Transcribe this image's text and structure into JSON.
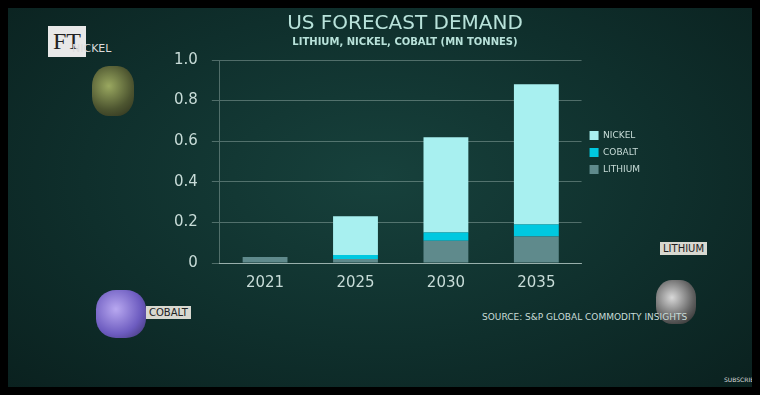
{
  "chart_data": {
    "type": "bar",
    "title": "US FORECAST DEMAND",
    "subtitle": "LITHIUM, NICKEL, COBALT (MN TONNES)",
    "categories": [
      "2021",
      "2025",
      "2030",
      "2035"
    ],
    "series": [
      {
        "name": "LITHIUM",
        "color": "#5f8a8c",
        "values": [
          0.03,
          0.02,
          0.11,
          0.13
        ]
      },
      {
        "name": "COBALT",
        "color": "#00c8e0",
        "values": [
          0,
          0.02,
          0.04,
          0.06
        ]
      },
      {
        "name": "NICKEL",
        "color": "#a8f0f0",
        "values": [
          0,
          0.19,
          0.47,
          0.69
        ]
      }
    ],
    "ylim": [
      0,
      1
    ],
    "yticks": [
      0,
      0.2,
      0.4,
      0.6,
      0.8,
      {
        "value": 1,
        "label": "1.0"
      }
    ],
    "stacked": true,
    "grid": true,
    "legend": "right",
    "annotations": [
      "FT",
      "NICKEL",
      "COBALT",
      "LITHIUM",
      "SOURCE: S&P GLOBAL COMMODITY INSIGHTS",
      "SUBSCRIBE"
    ]
  }
}
